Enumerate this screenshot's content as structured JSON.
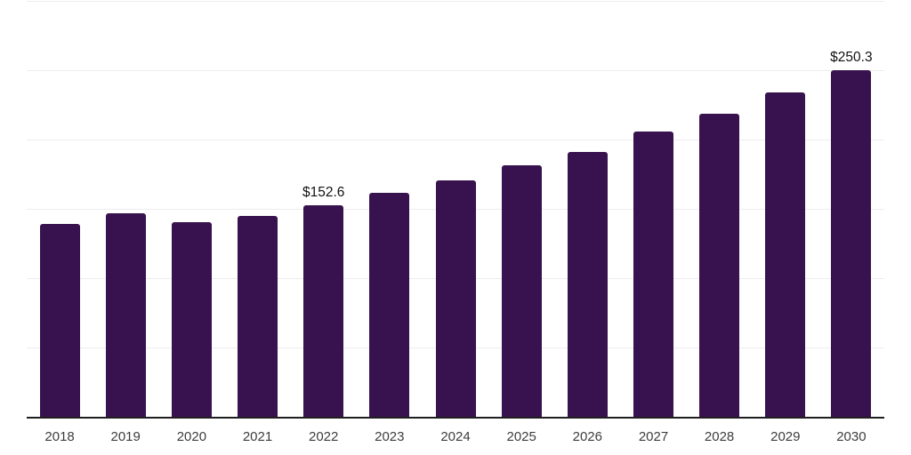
{
  "chart_data": {
    "type": "bar",
    "title": "",
    "xlabel": "",
    "ylabel": "",
    "categories": [
      "2018",
      "2019",
      "2020",
      "2021",
      "2022",
      "2023",
      "2024",
      "2025",
      "2026",
      "2027",
      "2028",
      "2029",
      "2030"
    ],
    "values": [
      139.4,
      147.1,
      140.1,
      144.7,
      152.6,
      161.4,
      170.7,
      181.6,
      190.8,
      205.5,
      218.4,
      233.8,
      250.3
    ],
    "data_labels": {
      "2022": "$152.6",
      "2030": "$250.3"
    },
    "ylim": [
      0,
      300
    ],
    "grid_step": 50,
    "grid": true,
    "legend": false,
    "colors": {
      "bar": "#38124E",
      "grid": "#ececec",
      "axis": "#1f1f1f",
      "tick_label": "#3d3d3d",
      "data_label": "#111111",
      "background": "#ffffff"
    }
  }
}
